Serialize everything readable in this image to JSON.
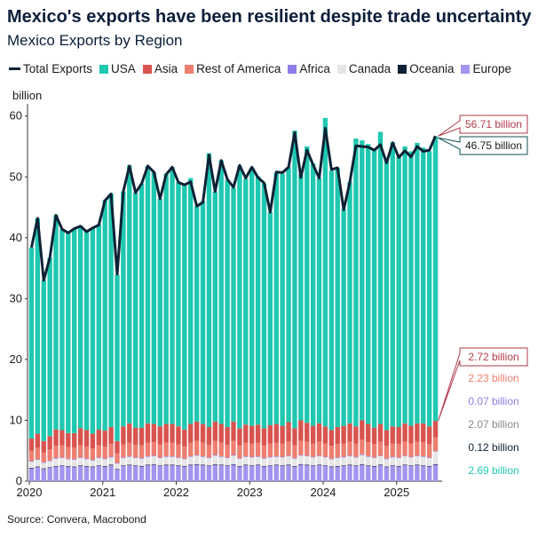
{
  "title": "Mexico's exports have been resilient despite trade uncertainty",
  "subtitle": "Mexico Exports by Region",
  "source": "Source: Convera, Macrobond",
  "colors": {
    "usa": "#1fc8b0",
    "asia": "#d9534f",
    "rest_of_america": "#ee7f70",
    "africa": "#8d7de8",
    "canada": "#e6e6e6",
    "oceania": "#0e2236",
    "europe": "#a394f0",
    "total_line": "#0e2236"
  },
  "chart_data": {
    "type": "bar",
    "stacked": true,
    "unit_label": "billion",
    "legend": [
      "Total Exports",
      "USA",
      "Asia",
      "Rest of America",
      "Africa",
      "Canada",
      "Oceania",
      "Europe"
    ],
    "legend_placement": "top-left",
    "x_range": [
      "2020-01",
      "2025-01"
    ],
    "x_ticks": [
      "2020",
      "2021",
      "2022",
      "2023",
      "2024",
      "2025"
    ],
    "y_ticks": [
      0,
      10,
      20,
      30,
      40,
      50,
      60
    ],
    "ylim": [
      0,
      62
    ],
    "grid": false,
    "series": [
      {
        "name": "Europe",
        "key": "europe",
        "values": [
          2.1,
          2.3,
          2.0,
          2.2,
          2.4,
          2.5,
          2.4,
          2.3,
          2.5,
          2.4,
          2.3,
          2.5,
          2.4,
          2.6,
          1.9,
          2.5,
          2.6,
          2.5,
          2.4,
          2.6,
          2.7,
          2.5,
          2.6,
          2.6,
          2.5,
          2.4,
          2.6,
          2.7,
          2.6,
          2.5,
          2.7,
          2.6,
          2.5,
          2.7,
          2.4,
          2.6,
          2.5,
          2.6,
          2.4,
          2.5,
          2.6,
          2.5,
          2.6,
          2.4,
          2.7,
          2.6,
          2.5,
          2.6,
          2.5,
          2.3,
          2.4,
          2.5,
          2.6,
          2.5,
          2.7,
          2.5,
          2.4,
          2.6,
          2.3,
          2.5,
          2.4,
          2.6,
          2.5,
          2.6,
          2.5,
          2.4,
          2.69
        ]
      },
      {
        "name": "Oceania",
        "key": "oceania",
        "values": [
          0.1,
          0.1,
          0.1,
          0.1,
          0.1,
          0.1,
          0.1,
          0.1,
          0.1,
          0.1,
          0.1,
          0.1,
          0.1,
          0.1,
          0.1,
          0.1,
          0.1,
          0.1,
          0.1,
          0.1,
          0.1,
          0.1,
          0.1,
          0.1,
          0.1,
          0.1,
          0.1,
          0.1,
          0.1,
          0.1,
          0.1,
          0.1,
          0.1,
          0.1,
          0.1,
          0.1,
          0.1,
          0.1,
          0.1,
          0.1,
          0.1,
          0.1,
          0.1,
          0.1,
          0.1,
          0.1,
          0.1,
          0.1,
          0.1,
          0.1,
          0.1,
          0.1,
          0.1,
          0.1,
          0.1,
          0.1,
          0.1,
          0.1,
          0.1,
          0.1,
          0.1,
          0.1,
          0.1,
          0.1,
          0.1,
          0.1,
          0.12
        ]
      },
      {
        "name": "Canada",
        "key": "canada",
        "values": [
          1.0,
          1.1,
          0.9,
          1.0,
          1.2,
          1.2,
          1.1,
          1.1,
          1.2,
          1.1,
          1.0,
          1.2,
          1.1,
          1.2,
          0.9,
          1.2,
          1.3,
          1.2,
          1.2,
          1.3,
          1.3,
          1.2,
          1.3,
          1.3,
          1.2,
          1.1,
          1.3,
          1.4,
          1.3,
          1.2,
          1.4,
          1.3,
          1.2,
          1.4,
          1.2,
          1.3,
          1.3,
          1.3,
          1.2,
          1.3,
          1.3,
          1.3,
          1.4,
          1.2,
          1.4,
          1.4,
          1.3,
          1.4,
          1.3,
          1.2,
          1.3,
          1.3,
          1.4,
          1.3,
          1.5,
          1.4,
          1.3,
          1.4,
          1.2,
          1.3,
          1.3,
          1.4,
          1.3,
          1.4,
          1.4,
          1.3,
          2.07
        ]
      },
      {
        "name": "Africa",
        "key": "africa",
        "values": [
          0.1,
          0.1,
          0.1,
          0.1,
          0.1,
          0.1,
          0.1,
          0.1,
          0.1,
          0.1,
          0.1,
          0.1,
          0.1,
          0.1,
          0.1,
          0.1,
          0.1,
          0.1,
          0.1,
          0.1,
          0.1,
          0.1,
          0.1,
          0.1,
          0.1,
          0.1,
          0.1,
          0.1,
          0.1,
          0.1,
          0.1,
          0.1,
          0.1,
          0.1,
          0.1,
          0.1,
          0.1,
          0.1,
          0.1,
          0.1,
          0.1,
          0.1,
          0.1,
          0.1,
          0.1,
          0.1,
          0.1,
          0.1,
          0.1,
          0.1,
          0.1,
          0.1,
          0.1,
          0.1,
          0.1,
          0.1,
          0.1,
          0.1,
          0.1,
          0.1,
          0.1,
          0.1,
          0.1,
          0.1,
          0.1,
          0.1,
          0.07
        ]
      },
      {
        "name": "Rest of America",
        "key": "rest_of_america",
        "values": [
          1.7,
          1.9,
          1.6,
          1.8,
          2.0,
          2.0,
          1.9,
          1.9,
          2.0,
          2.0,
          1.9,
          2.0,
          2.0,
          2.1,
          1.6,
          2.1,
          2.2,
          2.1,
          2.1,
          2.2,
          2.2,
          2.1,
          2.2,
          2.2,
          2.1,
          2.0,
          2.2,
          2.3,
          2.2,
          2.1,
          2.3,
          2.2,
          2.1,
          2.3,
          2.1,
          2.2,
          2.2,
          2.2,
          2.1,
          2.2,
          2.2,
          2.2,
          2.3,
          2.1,
          2.3,
          2.3,
          2.2,
          2.3,
          2.2,
          2.1,
          2.2,
          2.2,
          2.3,
          2.2,
          2.4,
          2.3,
          2.2,
          2.3,
          2.1,
          2.2,
          2.2,
          2.3,
          2.2,
          2.3,
          2.3,
          2.2,
          2.23
        ]
      },
      {
        "name": "Asia",
        "key": "asia",
        "values": [
          2.0,
          2.3,
          1.9,
          2.2,
          2.7,
          2.5,
          2.3,
          2.4,
          2.8,
          2.7,
          2.4,
          2.6,
          2.6,
          2.8,
          2.0,
          3.0,
          3.2,
          2.8,
          2.9,
          3.2,
          3.0,
          3.0,
          3.1,
          3.1,
          3.0,
          2.8,
          3.1,
          3.2,
          3.1,
          2.9,
          3.2,
          3.1,
          2.9,
          3.2,
          2.8,
          3.0,
          2.9,
          3.0,
          2.8,
          3.0,
          3.1,
          2.9,
          3.2,
          2.8,
          3.4,
          3.1,
          2.9,
          3.0,
          2.8,
          2.6,
          2.8,
          2.9,
          3.0,
          2.8,
          3.2,
          3.0,
          2.7,
          2.9,
          2.6,
          2.8,
          2.8,
          3.0,
          2.9,
          3.0,
          3.1,
          2.9,
          2.72
        ]
      },
      {
        "name": "USA",
        "key": "usa",
        "values": [
          31.4,
          35.4,
          26.4,
          29.3,
          35.2,
          33.0,
          32.9,
          33.6,
          33.3,
          32.6,
          33.8,
          33.7,
          37.9,
          38.4,
          27.3,
          38.6,
          42.4,
          38.6,
          40.1,
          42.3,
          41.4,
          37.4,
          41.1,
          42.2,
          40.1,
          40.2,
          40.4,
          35.4,
          36.6,
          45.0,
          37.8,
          43.3,
          40.6,
          38.4,
          43.1,
          40.4,
          42.4,
          40.8,
          40.2,
          35.0,
          41.3,
          41.4,
          41.9,
          48.9,
          40.4,
          45.4,
          43.1,
          40.3,
          50.7,
          42.6,
          42.6,
          35.6,
          39.7,
          47.3,
          46.0,
          46.0,
          45.8,
          48.0,
          44.4,
          46.7,
          44.5,
          45.5,
          45.1,
          46.1,
          45.3,
          45.2,
          46.75
        ]
      }
    ],
    "total_exports": [
      38.4,
      43.2,
      33.0,
      36.7,
      43.7,
      41.4,
      40.8,
      41.5,
      41.9,
      41.0,
      41.6,
      42.1,
      46.1,
      47.2,
      34.0,
      47.6,
      51.8,
      47.4,
      48.9,
      51.8,
      50.8,
      46.4,
      50.4,
      51.6,
      49.1,
      48.7,
      49.2,
      45.2,
      45.8,
      53.6,
      47.6,
      52.7,
      49.6,
      48.3,
      51.9,
      49.8,
      51.6,
      49.9,
      49.0,
      44.2,
      50.8,
      50.7,
      51.6,
      57.3,
      49.9,
      54.4,
      52.0,
      49.8,
      58.0,
      51.2,
      51.5,
      44.6,
      49.1,
      55.1,
      55.0,
      54.9,
      54.4,
      55.3,
      52.3,
      55.6,
      53.2,
      54.3,
      53.3,
      55.0,
      54.2,
      54.4,
      56.71
    ],
    "annotations": {
      "total_exports_last": "56.71 billion",
      "usa_last": "46.75 billion",
      "asia_last": "2.72 billion",
      "rest_of_america_last": "2.23 billion",
      "africa_last": "0.07 billion",
      "canada_last": "2.07 billion",
      "oceania_last": "0.12 billion",
      "europe_last": "2.69 billion"
    }
  },
  "legend_labels": {
    "total": "Total Exports",
    "usa": "USA",
    "asia": "Asia",
    "rest_of_america": "Rest of America",
    "africa": "Africa",
    "canada": "Canada",
    "oceania": "Oceania",
    "europe": "Europe"
  }
}
